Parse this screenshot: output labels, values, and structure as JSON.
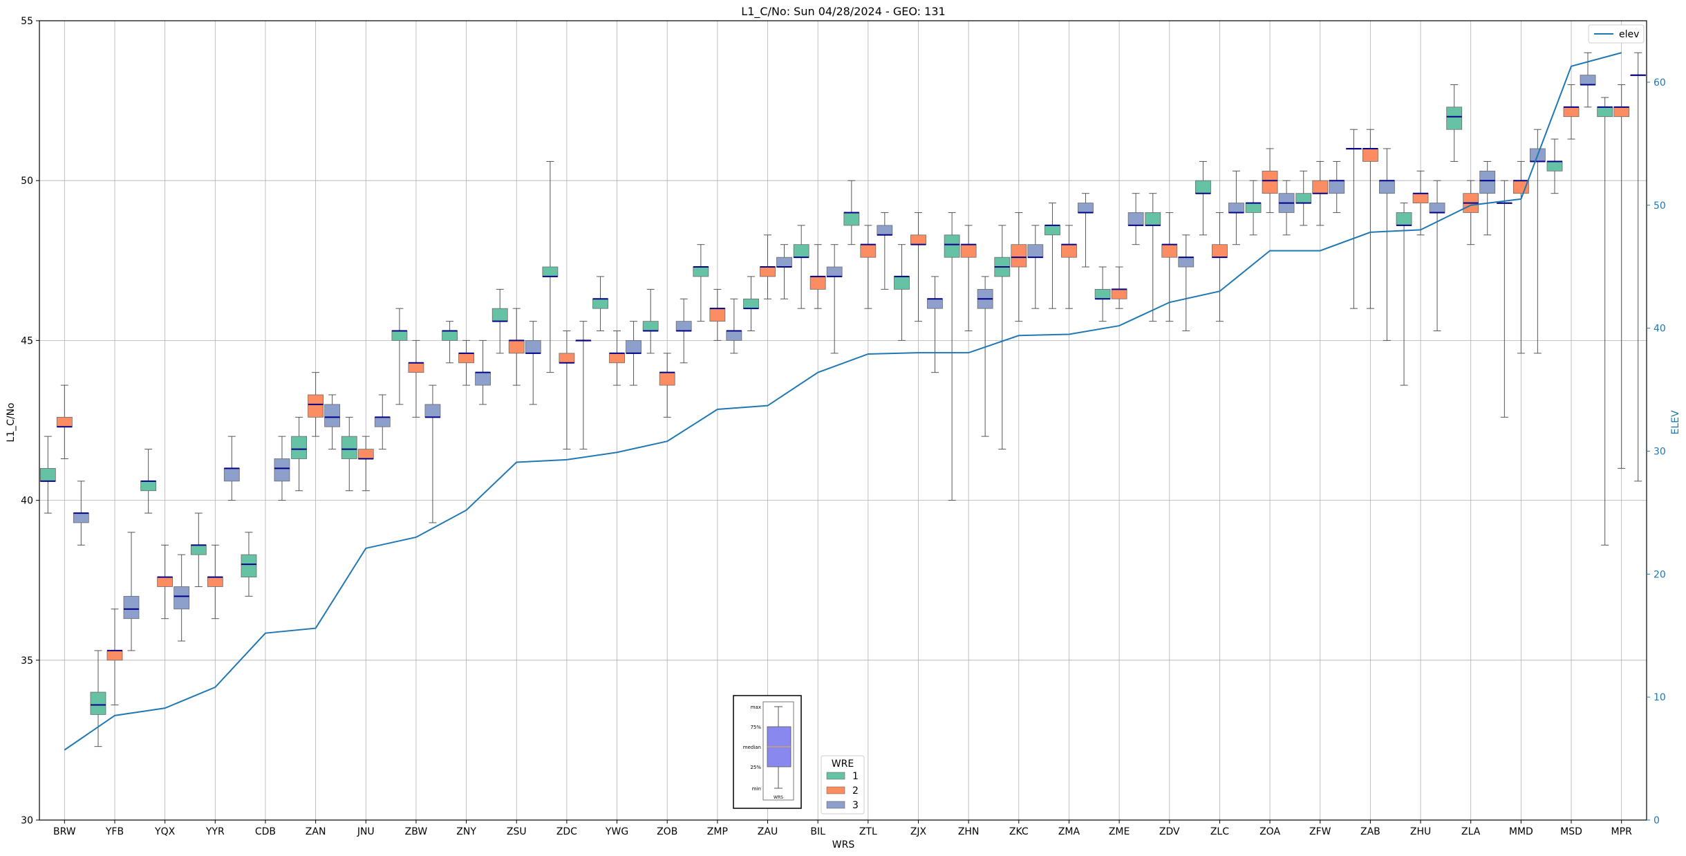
{
  "chart_data": {
    "type": "box",
    "title": "L1_C/No: Sun 04/28/2024 - GEO: 131",
    "xlabel": "WRS",
    "ylabel": "L1_C/No",
    "y2label": "ELEV",
    "ylim": [
      30,
      55
    ],
    "y2lim": [
      0,
      65
    ],
    "yticks": [
      30,
      35,
      40,
      45,
      50,
      55
    ],
    "y2ticks": [
      0,
      10,
      20,
      30,
      40,
      50,
      60
    ],
    "grid": true,
    "categories": [
      "BRW",
      "YFB",
      "YQX",
      "YYR",
      "CDB",
      "ZAN",
      "JNU",
      "ZBW",
      "ZNY",
      "ZSU",
      "ZDC",
      "YWG",
      "ZOB",
      "ZMP",
      "ZAU",
      "BIL",
      "ZTL",
      "ZJX",
      "ZHN",
      "ZKC",
      "ZMA",
      "ZME",
      "ZDV",
      "ZLC",
      "ZOA",
      "ZFW",
      "ZAB",
      "ZHU",
      "ZLA",
      "MMD",
      "MSD",
      "MPR"
    ],
    "colors": {
      "1": "#66c2a5",
      "2": "#fc8d62",
      "3": "#8da0cb",
      "median": "#00008b",
      "whisker": "#555555",
      "elev": "#1f77b4",
      "grid": "#b0b0b0"
    },
    "legend_wre": {
      "title": "WRE",
      "labels": [
        "1",
        "2",
        "3"
      ],
      "position": "bottom-center"
    },
    "legend_elev": {
      "label": "elev",
      "position": "top-right"
    },
    "legend_box": {
      "labels": [
        "max",
        "75%",
        "median",
        "25%",
        "min"
      ],
      "xlabel": "WRS"
    },
    "series": [
      {
        "name": "1",
        "boxes": [
          [
            39.6,
            40.6,
            40.6,
            41.0,
            42.0
          ],
          [
            32.3,
            33.3,
            33.6,
            34.0,
            35.3
          ],
          [
            39.6,
            40.3,
            40.6,
            40.6,
            41.6
          ],
          [
            37.3,
            38.3,
            38.6,
            38.6,
            39.6
          ],
          [
            37.0,
            37.6,
            38.0,
            38.3,
            39.0
          ],
          [
            40.3,
            41.3,
            41.6,
            42.0,
            42.6
          ],
          [
            40.3,
            41.3,
            41.6,
            42.0,
            42.6
          ],
          [
            43.0,
            45.0,
            45.3,
            45.3,
            46.0
          ],
          [
            44.3,
            45.0,
            45.3,
            45.3,
            45.6
          ],
          [
            44.6,
            45.6,
            45.6,
            46.0,
            46.6
          ],
          [
            44.0,
            47.0,
            47.0,
            47.3,
            50.6
          ],
          [
            45.3,
            46.0,
            46.3,
            46.3,
            47.0
          ],
          [
            44.6,
            45.3,
            45.3,
            45.6,
            46.6
          ],
          [
            45.6,
            47.0,
            47.3,
            47.3,
            48.0
          ],
          [
            45.3,
            46.0,
            46.0,
            46.3,
            47.0
          ],
          [
            46.0,
            47.6,
            47.6,
            48.0,
            48.6
          ],
          [
            48.0,
            48.6,
            49.0,
            49.0,
            50.0
          ],
          [
            45.0,
            46.6,
            47.0,
            47.0,
            48.0
          ],
          [
            40.0,
            47.6,
            48.0,
            48.3,
            49.0
          ],
          [
            41.6,
            47.0,
            47.3,
            47.6,
            48.6
          ],
          [
            46.0,
            48.3,
            48.6,
            48.6,
            49.3
          ],
          [
            45.6,
            46.3,
            46.3,
            46.6,
            47.3
          ],
          [
            45.6,
            48.6,
            48.6,
            49.0,
            49.6
          ],
          [
            48.3,
            49.6,
            49.6,
            50.0,
            50.6
          ],
          [
            48.3,
            49.0,
            49.3,
            49.3,
            50.0
          ],
          [
            48.6,
            49.3,
            49.3,
            49.6,
            50.3
          ],
          [
            46.0,
            51.0,
            51.0,
            51.0,
            51.6
          ],
          [
            43.6,
            48.6,
            48.6,
            49.0,
            49.3
          ],
          [
            50.6,
            51.6,
            52.0,
            52.3,
            53.0
          ],
          [
            42.6,
            49.3,
            49.3,
            49.3,
            50.0
          ],
          [
            49.6,
            50.3,
            50.6,
            50.6,
            51.3
          ],
          [
            38.6,
            52.0,
            52.3,
            52.3,
            52.6
          ]
        ]
      },
      {
        "name": "2",
        "boxes": [
          [
            41.3,
            42.3,
            42.3,
            42.6,
            43.6
          ],
          [
            33.6,
            35.0,
            35.3,
            35.3,
            36.6
          ],
          [
            36.3,
            37.3,
            37.6,
            37.6,
            38.6
          ],
          [
            36.3,
            37.3,
            37.6,
            37.6,
            38.6
          ],
          null,
          [
            42.0,
            42.6,
            43.0,
            43.3,
            44.0
          ],
          [
            40.3,
            41.3,
            41.3,
            41.6,
            42.0
          ],
          [
            42.6,
            44.0,
            44.3,
            44.3,
            45.0
          ],
          [
            43.6,
            44.3,
            44.6,
            44.6,
            45.0
          ],
          [
            43.6,
            44.6,
            45.0,
            45.0,
            46.0
          ],
          [
            41.6,
            44.3,
            44.3,
            44.6,
            45.3
          ],
          [
            43.6,
            44.3,
            44.6,
            44.6,
            45.3
          ],
          [
            42.6,
            43.6,
            44.0,
            44.0,
            44.6
          ],
          [
            45.0,
            45.6,
            46.0,
            46.0,
            46.6
          ],
          [
            46.3,
            47.0,
            47.3,
            47.3,
            48.3
          ],
          [
            46.0,
            46.6,
            47.0,
            47.0,
            48.0
          ],
          [
            46.0,
            47.6,
            48.0,
            48.0,
            48.6
          ],
          [
            45.6,
            48.0,
            48.0,
            48.3,
            49.0
          ],
          [
            45.3,
            47.6,
            48.0,
            48.0,
            48.6
          ],
          [
            45.6,
            47.3,
            47.6,
            48.0,
            49.0
          ],
          [
            46.0,
            47.6,
            48.0,
            48.0,
            48.6
          ],
          [
            46.0,
            46.3,
            46.6,
            46.6,
            47.3
          ],
          [
            45.6,
            47.6,
            48.0,
            48.0,
            49.0
          ],
          [
            45.6,
            47.6,
            47.6,
            48.0,
            49.0
          ],
          [
            49.0,
            49.6,
            50.0,
            50.3,
            51.0
          ],
          [
            48.6,
            49.6,
            49.6,
            50.0,
            50.6
          ],
          [
            46.0,
            50.6,
            51.0,
            51.0,
            51.6
          ],
          [
            48.3,
            49.3,
            49.6,
            49.6,
            50.3
          ],
          [
            48.0,
            49.0,
            49.3,
            49.6,
            50.0
          ],
          [
            44.6,
            49.6,
            50.0,
            50.0,
            50.6
          ],
          [
            51.3,
            52.0,
            52.3,
            52.3,
            53.0
          ],
          [
            41.0,
            52.0,
            52.3,
            52.3,
            53.0
          ]
        ]
      },
      {
        "name": "3",
        "boxes": [
          [
            38.6,
            39.3,
            39.6,
            39.6,
            40.6
          ],
          [
            35.3,
            36.3,
            36.6,
            37.0,
            39.0
          ],
          [
            35.6,
            36.6,
            37.0,
            37.3,
            38.3
          ],
          [
            40.0,
            40.6,
            41.0,
            41.0,
            42.0
          ],
          [
            40.0,
            40.6,
            41.0,
            41.3,
            42.0
          ],
          [
            41.6,
            42.3,
            42.6,
            43.0,
            43.3
          ],
          [
            41.6,
            42.3,
            42.6,
            42.6,
            43.3
          ],
          [
            39.3,
            42.6,
            42.6,
            43.0,
            43.6
          ],
          [
            43.0,
            43.6,
            44.0,
            44.0,
            45.0
          ],
          [
            43.0,
            44.6,
            44.6,
            45.0,
            45.6
          ],
          [
            41.6,
            45.0,
            45.0,
            45.0,
            45.6
          ],
          [
            43.6,
            44.6,
            44.6,
            45.0,
            45.6
          ],
          [
            44.3,
            45.3,
            45.3,
            45.6,
            46.3
          ],
          [
            44.6,
            45.0,
            45.3,
            45.3,
            46.3
          ],
          [
            46.3,
            47.3,
            47.3,
            47.6,
            48.0
          ],
          [
            44.6,
            47.0,
            47.0,
            47.3,
            48.0
          ],
          [
            46.6,
            48.3,
            48.3,
            48.6,
            49.0
          ],
          [
            44.0,
            46.0,
            46.3,
            46.3,
            47.0
          ],
          [
            42.0,
            46.0,
            46.3,
            46.6,
            47.0
          ],
          [
            46.0,
            47.6,
            47.6,
            48.0,
            48.6
          ],
          [
            47.3,
            49.0,
            49.0,
            49.3,
            49.6
          ],
          [
            48.0,
            48.6,
            48.6,
            49.0,
            49.6
          ],
          [
            45.3,
            47.3,
            47.6,
            47.6,
            48.3
          ],
          [
            48.0,
            49.0,
            49.0,
            49.3,
            50.3
          ],
          [
            48.3,
            49.0,
            49.3,
            49.6,
            50.0
          ],
          [
            49.0,
            49.6,
            50.0,
            50.0,
            50.6
          ],
          [
            45.0,
            49.6,
            50.0,
            50.0,
            51.0
          ],
          [
            45.3,
            49.0,
            49.0,
            49.3,
            50.0
          ],
          [
            48.3,
            49.6,
            50.0,
            50.3,
            50.6
          ],
          [
            44.6,
            50.6,
            50.6,
            51.0,
            51.6
          ],
          [
            52.3,
            53.0,
            53.0,
            53.3,
            54.0
          ],
          [
            40.6,
            53.3,
            53.3,
            53.3,
            54.0
          ]
        ]
      }
    ],
    "elev": [
      5.7,
      8.5,
      9.1,
      10.8,
      15.2,
      15.6,
      22.1,
      23.0,
      25.2,
      29.1,
      29.3,
      29.9,
      30.8,
      33.4,
      33.7,
      36.4,
      37.9,
      38.0,
      38.0,
      39.4,
      39.5,
      40.2,
      42.1,
      43.0,
      46.3,
      46.3,
      47.8,
      48.0,
      50.0,
      50.5,
      61.3,
      62.4
    ]
  }
}
